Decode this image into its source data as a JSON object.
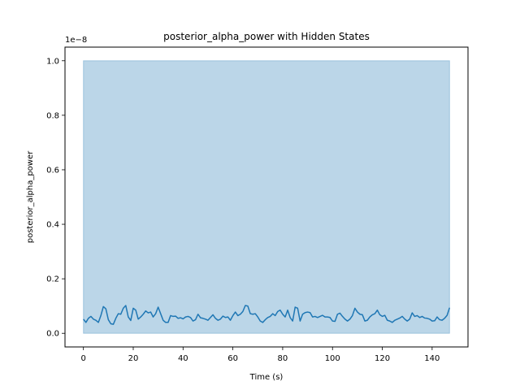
{
  "chart_data": {
    "type": "line",
    "title": "posterior_alpha_power with Hidden States",
    "xlabel": "Time (s)",
    "ylabel": "posterior_alpha_power",
    "offset_text": "1e−8",
    "xlim": [
      -7.4,
      154.4
    ],
    "ylim": [
      -0.05,
      1.05
    ],
    "xticks": [
      0,
      20,
      40,
      60,
      80,
      100,
      120,
      140
    ],
    "xtick_labels": [
      "0",
      "20",
      "40",
      "60",
      "80",
      "100",
      "120",
      "140"
    ],
    "yticks": [
      0.0,
      0.2,
      0.4,
      0.6,
      0.8,
      1.0
    ],
    "ytick_labels": [
      "0.0",
      "0.2",
      "0.4",
      "0.6",
      "0.8",
      "1.0"
    ],
    "grid": false,
    "colors": {
      "line": "#1f77b4",
      "band": "#1f77b4"
    },
    "hidden_state_band": {
      "x_start": 0,
      "x_end": 147,
      "y_start": 0.0,
      "y_end": 1.0
    },
    "series": [
      {
        "x": [
          0,
          1,
          2,
          3,
          4,
          5,
          6,
          7,
          8,
          9,
          10,
          11,
          12,
          13,
          14,
          15,
          16,
          17,
          18,
          19,
          20,
          21,
          22,
          23,
          24,
          25,
          26,
          27,
          28,
          29,
          30,
          31,
          32,
          33,
          34,
          35,
          36,
          37,
          38,
          39,
          40,
          41,
          42,
          43,
          44,
          45,
          46,
          47,
          48,
          49,
          50,
          51,
          52,
          53,
          54,
          55,
          56,
          57,
          58,
          59,
          60,
          61,
          62,
          63,
          64,
          65,
          66,
          67,
          68,
          69,
          70,
          71,
          72,
          73,
          74,
          75,
          76,
          77,
          78,
          79,
          80,
          81,
          82,
          83,
          84,
          85,
          86,
          87,
          88,
          89,
          90,
          91,
          92,
          93,
          94,
          95,
          96,
          97,
          98,
          99,
          100,
          101,
          102,
          103,
          104,
          105,
          106,
          107,
          108,
          109,
          110,
          111,
          112,
          113,
          114,
          115,
          116,
          117,
          118,
          119,
          120,
          121,
          122,
          123,
          124,
          125,
          126,
          127,
          128,
          129,
          130,
          131,
          132,
          133,
          134,
          135,
          136,
          137,
          138,
          139,
          140,
          141,
          142,
          143,
          144,
          145,
          146,
          147
        ],
        "values": [
          0.052,
          0.04,
          0.055,
          0.062,
          0.052,
          0.048,
          0.04,
          0.065,
          0.098,
          0.09,
          0.05,
          0.035,
          0.033,
          0.055,
          0.072,
          0.07,
          0.092,
          0.102,
          0.06,
          0.047,
          0.092,
          0.085,
          0.052,
          0.06,
          0.07,
          0.082,
          0.075,
          0.078,
          0.06,
          0.072,
          0.096,
          0.072,
          0.048,
          0.04,
          0.04,
          0.065,
          0.062,
          0.063,
          0.055,
          0.057,
          0.053,
          0.06,
          0.062,
          0.058,
          0.045,
          0.05,
          0.07,
          0.057,
          0.055,
          0.052,
          0.048,
          0.058,
          0.068,
          0.055,
          0.048,
          0.052,
          0.063,
          0.058,
          0.06,
          0.048,
          0.065,
          0.078,
          0.065,
          0.07,
          0.08,
          0.102,
          0.1,
          0.072,
          0.07,
          0.072,
          0.06,
          0.045,
          0.04,
          0.05,
          0.058,
          0.062,
          0.072,
          0.065,
          0.08,
          0.085,
          0.07,
          0.06,
          0.085,
          0.058,
          0.045,
          0.096,
          0.092,
          0.045,
          0.07,
          0.076,
          0.078,
          0.076,
          0.06,
          0.062,
          0.058,
          0.062,
          0.066,
          0.06,
          0.06,
          0.058,
          0.045,
          0.044,
          0.07,
          0.074,
          0.062,
          0.052,
          0.045,
          0.052,
          0.065,
          0.092,
          0.078,
          0.07,
          0.068,
          0.045,
          0.048,
          0.06,
          0.068,
          0.072,
          0.085,
          0.068,
          0.062,
          0.066,
          0.048,
          0.045,
          0.04,
          0.048,
          0.052,
          0.056,
          0.062,
          0.052,
          0.045,
          0.052,
          0.075,
          0.062,
          0.065,
          0.058,
          0.062,
          0.056,
          0.055,
          0.052,
          0.045,
          0.046,
          0.06,
          0.05,
          0.048,
          0.055,
          0.066,
          0.094
        ]
      }
    ]
  }
}
